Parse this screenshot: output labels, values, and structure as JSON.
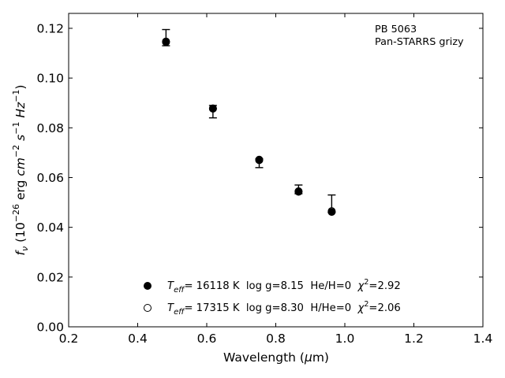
{
  "chart_data": {
    "type": "scatter",
    "annotation": {
      "line1": "PB 5063",
      "line2": "Pan-STARRS grizy"
    },
    "xaxis": {
      "label_pre": "Wavelength (",
      "label_mu": "μ",
      "label_post": "m)",
      "range": [
        0.2,
        1.4
      ],
      "ticks": [
        0.2,
        0.4,
        0.6,
        0.8,
        1.0,
        1.2,
        1.4
      ],
      "tick_labels": [
        "0.2",
        "0.4",
        "0.6",
        "0.8",
        "1.0",
        "1.2",
        "1.4"
      ]
    },
    "yaxis": {
      "label_f": "f",
      "label_nu": "ν",
      "label_rest": " (10",
      "label_exp1": "−26",
      "label_erg": " erg ",
      "label_cm": "cm",
      "label_exp2": "−2",
      "label_s": " s",
      "label_exp3": "−1",
      "label_hz": " Hz",
      "label_exp4": "−1",
      "label_close": ")",
      "range": [
        0.0,
        0.126
      ],
      "ticks": [
        0.0,
        0.02,
        0.04,
        0.06,
        0.08,
        0.1,
        0.12
      ],
      "tick_labels": [
        "0.00",
        "0.02",
        "0.04",
        "0.06",
        "0.08",
        "0.10",
        "0.12"
      ]
    },
    "observed": {
      "x": [
        0.482,
        0.618,
        0.752,
        0.866,
        0.962
      ],
      "y": [
        0.116,
        0.0865,
        0.0665,
        0.055,
        0.046
      ],
      "yerr_low": [
        0.003,
        0.0025,
        0.0025,
        0.0015,
        0.0
      ],
      "yerr_high": [
        0.0035,
        0.0025,
        0.001,
        0.002,
        0.007
      ]
    },
    "series": [
      {
        "marker": "filled-circle",
        "x": [
          0.482,
          0.618,
          0.752,
          0.866,
          0.962
        ],
        "y": [
          0.1147,
          0.0877,
          0.067,
          0.0543,
          0.0462
        ]
      },
      {
        "marker": "open-circle",
        "x": [
          0.482,
          0.618,
          0.752,
          0.866,
          0.962
        ],
        "y": [
          0.1145,
          0.0878,
          0.0672,
          0.0545,
          0.0465
        ]
      }
    ],
    "legend": [
      {
        "marker": "filled-circle",
        "T": "T",
        "eff": "eff",
        "text1": "= 16118 K  log g=8.15  He/H=0  ",
        "chi": "χ",
        "sq": "2",
        "text2": "=2.92"
      },
      {
        "marker": "open-circle",
        "T": "T",
        "eff": "eff",
        "text1": "= 17315 K  log g=8.30  H/He=0  ",
        "chi": "χ",
        "sq": "2",
        "text2": "=2.06"
      }
    ],
    "legend_position": "lower-center",
    "grid": false
  }
}
